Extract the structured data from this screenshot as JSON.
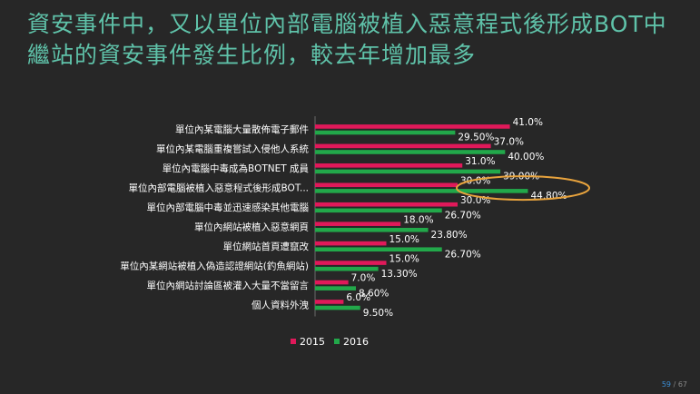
{
  "slide": {
    "title": "資安事件中，又以單位內部電腦被植入惡意程式後形成BOT中繼站的資安事件發生比例，較去年增加最多",
    "page_current": "59",
    "page_sep": " / ",
    "page_total": "67"
  },
  "colors": {
    "series_2015": "#e0195a",
    "series_2016": "#22a84a",
    "highlight": "#e8a33d",
    "label_text": "#ffffff",
    "title": "#5fc2a9"
  },
  "chart_data": {
    "type": "bar",
    "orientation": "horizontal",
    "title": "",
    "xlabel": "",
    "ylabel": "",
    "categories": [
      "單位內某電腦大量散佈電子郵件",
      "單位內某電腦重複嘗試入侵他人系統",
      "單位內電腦中毒成為BOTNET 成員",
      "單位內部電腦被植入惡意程式後形成BOT...",
      "單位內部電腦中毒並迅速感染其他電腦",
      "單位內網站被植入惡意網頁",
      "單位網站首頁遭竄改",
      "單位內某網站被植入偽造認證網站(釣魚網站)",
      "單位內網站討論區被灌入大量不當留言",
      "個人資料外洩"
    ],
    "series": [
      {
        "name": "2015",
        "values": [
          41.0,
          37.0,
          31.0,
          30.0,
          30.0,
          18.0,
          15.0,
          15.0,
          7.0,
          6.0
        ],
        "labels": [
          "41.0%",
          "37.0%",
          "31.0%",
          "30.0%",
          "30.0%",
          "18.0%",
          "15.0%",
          "15.0%",
          "7.0%",
          "6.0%"
        ]
      },
      {
        "name": "2016",
        "values": [
          29.5,
          40.0,
          39.0,
          44.8,
          26.7,
          23.8,
          26.7,
          13.3,
          8.6,
          9.5
        ],
        "labels": [
          "29.50%",
          "40.00%",
          "39.00%",
          "44.80%",
          "26.70%",
          "23.80%",
          "26.70%",
          "13.30%",
          "8.60%",
          "9.50%"
        ]
      }
    ],
    "xlim": [
      0,
      50
    ],
    "highlight_category_index": 3,
    "legend_position": "bottom",
    "grid": false
  }
}
